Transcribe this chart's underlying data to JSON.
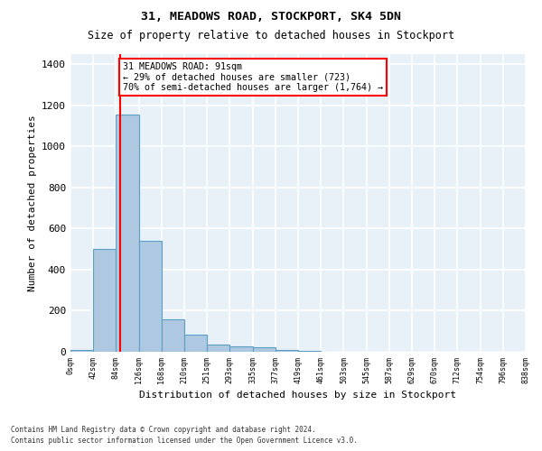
{
  "title1": "31, MEADOWS ROAD, STOCKPORT, SK4 5DN",
  "title2": "Size of property relative to detached houses in Stockport",
  "xlabel": "Distribution of detached houses by size in Stockport",
  "ylabel": "Number of detached properties",
  "bin_edges": [
    "0sqm",
    "42sqm",
    "84sqm",
    "126sqm",
    "168sqm",
    "210sqm",
    "251sqm",
    "293sqm",
    "335sqm",
    "377sqm",
    "419sqm",
    "461sqm",
    "503sqm",
    "545sqm",
    "587sqm",
    "629sqm",
    "670sqm",
    "712sqm",
    "754sqm",
    "796sqm",
    "838sqm"
  ],
  "bar_values": [
    10,
    500,
    1155,
    540,
    160,
    83,
    35,
    25,
    20,
    10,
    5,
    0,
    0,
    0,
    0,
    0,
    0,
    0,
    0,
    0
  ],
  "bar_color": "#adc8e0",
  "bar_edge_color": "#5a9fc4",
  "property_value": 91,
  "annotation_text": "31 MEADOWS ROAD: 91sqm\n← 29% of detached houses are smaller (723)\n70% of semi-detached houses are larger (1,764) →",
  "annotation_box_color": "white",
  "annotation_box_edge_color": "red",
  "ylim": [
    0,
    1450
  ],
  "yticks": [
    0,
    200,
    400,
    600,
    800,
    1000,
    1200,
    1400
  ],
  "footer1": "Contains HM Land Registry data © Crown copyright and database right 2024.",
  "footer2": "Contains public sector information licensed under the Open Government Licence v3.0.",
  "bg_color": "#e8f0f8",
  "grid_color": "white"
}
